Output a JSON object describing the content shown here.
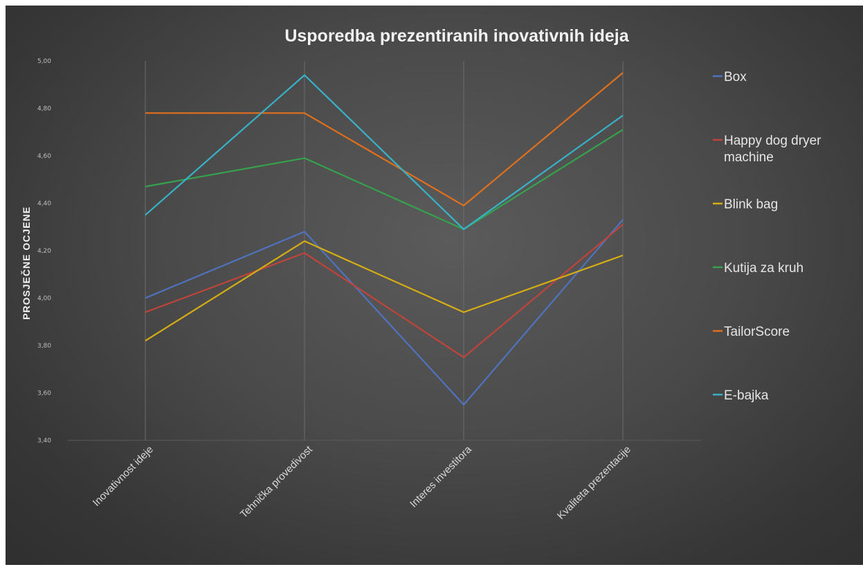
{
  "chart_data": {
    "type": "line",
    "title": "Usporedba prezentiranih inovativnih ideja",
    "xlabel": "",
    "ylabel": "PROSJEČNE OCJENE",
    "categories": [
      "Inovativnost ideje",
      "Tehnička provedivost",
      "Interes investitora",
      "Kvaliteta prezentacije"
    ],
    "y_ticks": [
      "3,40",
      "3,60",
      "3,80",
      "4,00",
      "4,20",
      "4,40",
      "4,60",
      "4,80",
      "5,00"
    ],
    "ylim": [
      3.4,
      5.0
    ],
    "grid": "vertical",
    "legend_position": "right",
    "series": [
      {
        "name": "Box",
        "color": "#4f73be",
        "values": [
          4.0,
          4.28,
          3.55,
          4.33
        ]
      },
      {
        "name": "Happy dog dryer machine",
        "color": "#c0443a",
        "values": [
          3.94,
          4.19,
          3.75,
          4.31
        ]
      },
      {
        "name": "Blink bag",
        "color": "#d6ad13",
        "values": [
          3.82,
          4.24,
          3.94,
          4.18
        ]
      },
      {
        "name": "Kutija za kruh",
        "color": "#35a24c",
        "values": [
          4.47,
          4.59,
          4.29,
          4.71
        ]
      },
      {
        "name": "TailorScore",
        "color": "#e0701c",
        "values": [
          4.78,
          4.78,
          4.39,
          4.95
        ]
      },
      {
        "name": "E-bajka",
        "color": "#37b3c9",
        "values": [
          4.35,
          4.94,
          4.29,
          4.77
        ]
      }
    ]
  }
}
